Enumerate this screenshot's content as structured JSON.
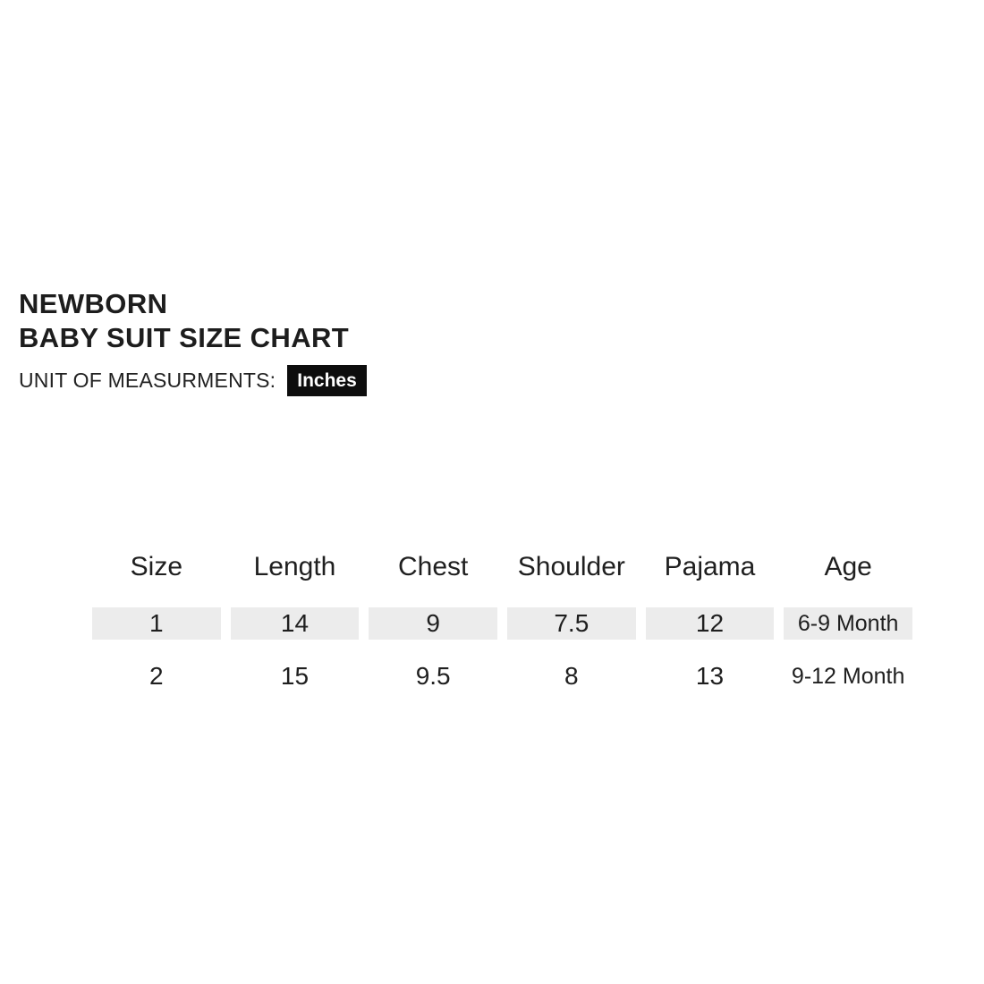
{
  "page": {
    "background": "#ffffff",
    "text_color": "#1e1e1e"
  },
  "header": {
    "title_line1": "NEWBORN",
    "title_line2": "BABY SUIT SIZE CHART",
    "unit_label": "UNIT OF MEASURMENTS:",
    "unit_value": "Inches",
    "badge_bg": "#0d0d0d",
    "badge_text_color": "#ffffff"
  },
  "size_table": {
    "highlight_color": "#ececec",
    "columns": [
      "Size",
      "Length",
      "Chest",
      "Shoulder",
      "Pajama",
      "Age"
    ],
    "rows": [
      {
        "highlighted": true,
        "cells": [
          "1",
          "14",
          "9",
          "7.5",
          "12",
          "6-9 Month"
        ]
      },
      {
        "highlighted": false,
        "cells": [
          "2",
          "15",
          "9.5",
          "8",
          "13",
          "9-12 Month"
        ]
      }
    ]
  },
  "chart_data": {
    "type": "table",
    "title": "NEWBORN BABY SUIT SIZE CHART",
    "unit": "Inches",
    "columns": [
      "Size",
      "Length",
      "Chest",
      "Shoulder",
      "Pajama",
      "Age"
    ],
    "rows": [
      [
        "1",
        "14",
        "9",
        "7.5",
        "12",
        "6-9 Month"
      ],
      [
        "2",
        "15",
        "9.5",
        "8",
        "13",
        "9-12 Month"
      ]
    ]
  }
}
